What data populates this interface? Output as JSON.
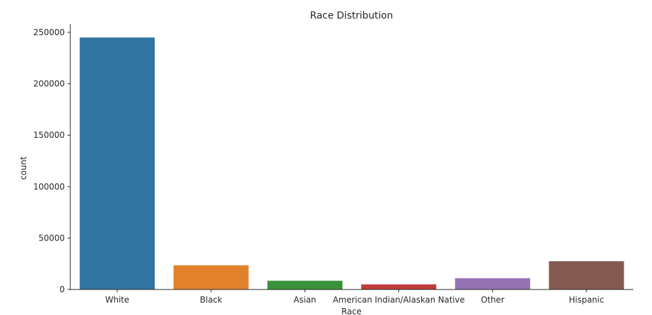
{
  "chart_data": {
    "type": "bar",
    "title": "Race Distribution",
    "xlabel": "Race",
    "ylabel": "count",
    "categories": [
      "White",
      "Black",
      "Asian",
      "American Indian/Alaskan Native",
      "Other",
      "Hispanic"
    ],
    "values": [
      245000,
      23500,
      8500,
      5000,
      11000,
      27500
    ],
    "colors": [
      "#3274a1",
      "#e1812c",
      "#3a923a",
      "#c03d3e",
      "#9372b2",
      "#845b53"
    ],
    "ylim": [
      0,
      258000
    ],
    "yticks": [
      0,
      50000,
      100000,
      150000,
      200000,
      250000
    ],
    "ytick_labels": [
      "0",
      "50000",
      "100000",
      "150000",
      "200000",
      "250000"
    ],
    "grid": false,
    "legend": "none"
  }
}
